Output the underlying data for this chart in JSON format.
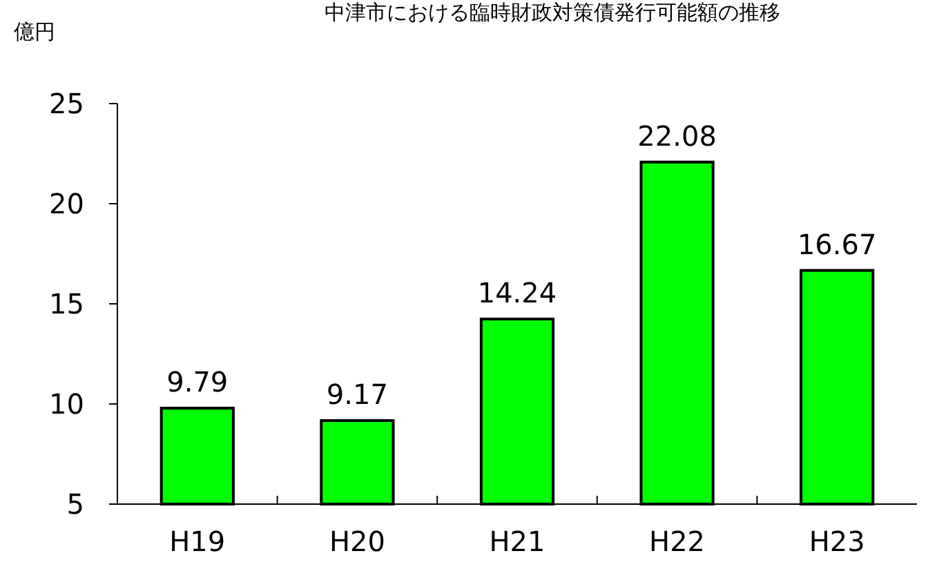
{
  "chart_data": {
    "type": "bar",
    "title": "中津市における臨時財政対策債発行可能額の推移",
    "ylabel": "億円",
    "categories": [
      "H19",
      "H20",
      "H21",
      "H22",
      "H23"
    ],
    "values": [
      9.79,
      9.17,
      14.24,
      22.08,
      16.67
    ],
    "color": "#00ff00",
    "ylim": [
      5,
      25
    ],
    "yticks": [
      5,
      10,
      15,
      20,
      25
    ],
    "data_labels": true,
    "grid": false
  }
}
